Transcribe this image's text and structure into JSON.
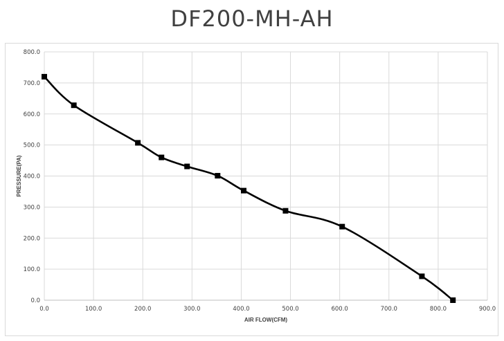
{
  "chart_data": {
    "type": "line",
    "title": "DF200-MH-AH",
    "xlabel": "AIR FLOW(CFM)",
    "ylabel": "PRESSURE(PA)",
    "xlim": [
      0,
      900
    ],
    "ylim": [
      0,
      800
    ],
    "x_ticks": [
      "0.0",
      "100.0",
      "200.0",
      "300.0",
      "400.0",
      "500.0",
      "600.0",
      "700.0",
      "800.0",
      "900.0"
    ],
    "y_ticks": [
      "0.0",
      "100.0",
      "200.0",
      "300.0",
      "400.0",
      "500.0",
      "600.0",
      "700.0",
      "800.0"
    ],
    "grid": true,
    "legend": "none",
    "series": [
      {
        "color": "#000000",
        "marker": "square",
        "points": [
          {
            "x": 0,
            "y": 720
          },
          {
            "x": 60,
            "y": 628
          },
          {
            "x": 190,
            "y": 507
          },
          {
            "x": 238,
            "y": 460
          },
          {
            "x": 290,
            "y": 431
          },
          {
            "x": 352,
            "y": 401
          },
          {
            "x": 405,
            "y": 353
          },
          {
            "x": 490,
            "y": 288
          },
          {
            "x": 605,
            "y": 237
          },
          {
            "x": 767,
            "y": 77
          },
          {
            "x": 830,
            "y": 0
          }
        ]
      }
    ]
  }
}
